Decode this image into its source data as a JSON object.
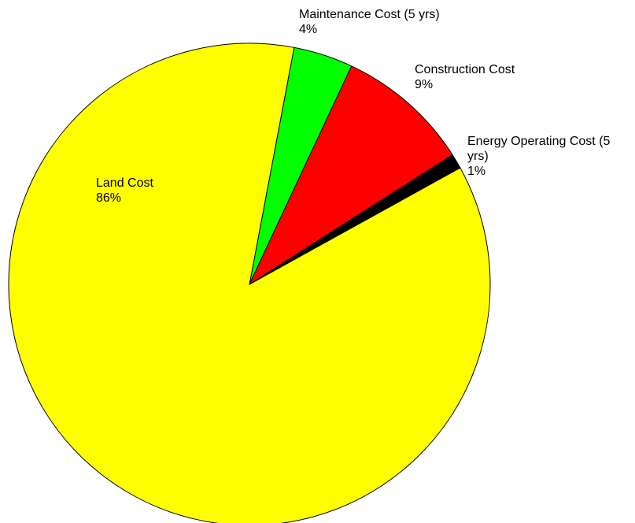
{
  "chart_data": {
    "type": "pie",
    "categories": [
      "Maintenance Cost (5 yrs)",
      "Construction Cost",
      "Energy Operating Cost (5 yrs)",
      "Land Cost"
    ],
    "values": [
      4,
      9,
      1,
      86
    ],
    "value_labels": [
      "4%",
      "9%",
      "1%",
      "86%"
    ],
    "colors": [
      "#00ff00",
      "#ff0000",
      "#000000",
      "#ffff00"
    ]
  }
}
